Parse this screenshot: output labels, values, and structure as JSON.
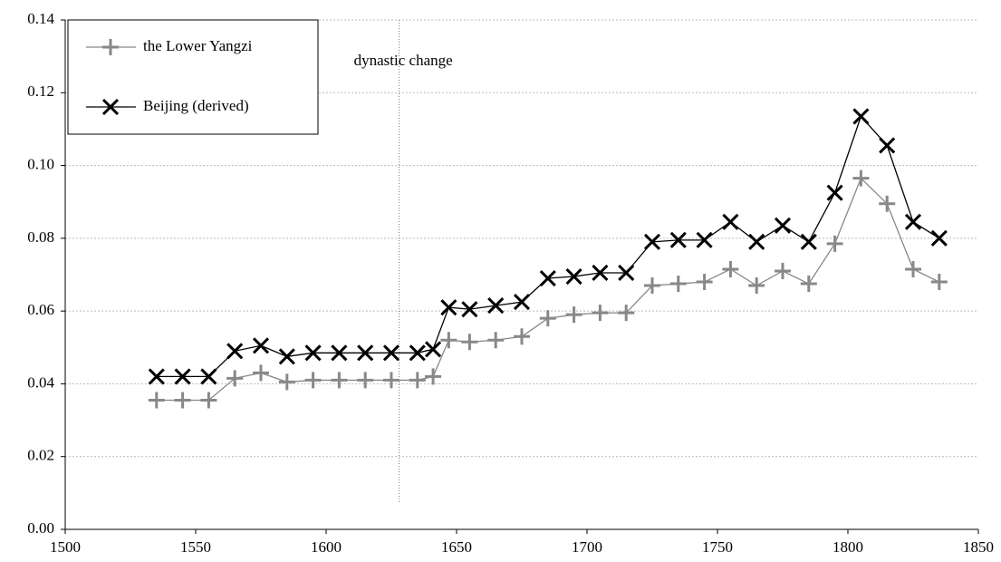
{
  "chart_data": {
    "type": "line",
    "xlim": [
      1500,
      1850
    ],
    "xticks": [
      1500,
      1550,
      1600,
      1650,
      1700,
      1750,
      1800,
      1850
    ],
    "ylim": [
      0,
      0.14
    ],
    "yticks": [
      {
        "value": 0,
        "label": "0.00"
      },
      0.02,
      0.04,
      0.06,
      0.08,
      {
        "value": 0.1,
        "label": "0.10"
      },
      0.12,
      0.14
    ],
    "grid": true,
    "legend": "top-left",
    "annotation": {
      "text": "dynastic change",
      "x": 1628
    },
    "x": [
      1535,
      1545,
      1555,
      1565,
      1575,
      1585,
      1595,
      1605,
      1615,
      1625,
      1635,
      1641,
      1647,
      1655,
      1665,
      1675,
      1685,
      1695,
      1705,
      1715,
      1725,
      1735,
      1745,
      1755,
      1765,
      1775,
      1785,
      1795,
      1805,
      1815,
      1825,
      1835
    ],
    "series": [
      {
        "name": "the Lower Yangzi",
        "color": "#888888",
        "marker": "plus",
        "values": [
          0.0355,
          0.0355,
          0.0355,
          0.0415,
          0.043,
          0.0405,
          0.041,
          0.041,
          0.041,
          0.041,
          0.041,
          0.042,
          0.052,
          0.0515,
          0.052,
          0.053,
          0.058,
          0.059,
          0.0595,
          0.0595,
          0.067,
          0.0675,
          0.068,
          0.0715,
          0.067,
          0.071,
          0.0675,
          0.0785,
          0.0965,
          0.0895,
          0.0715,
          0.068
        ]
      },
      {
        "name": "Beijing (derived)",
        "color": "#000000",
        "marker": "x",
        "values": [
          0.042,
          0.042,
          0.042,
          0.049,
          0.0505,
          0.0475,
          0.0485,
          0.0485,
          0.0485,
          0.0485,
          0.0485,
          0.0495,
          0.061,
          0.0605,
          0.0615,
          0.0625,
          0.069,
          0.0695,
          0.0705,
          0.0705,
          0.079,
          0.0795,
          0.0795,
          0.0845,
          0.079,
          0.0835,
          0.079,
          0.0925,
          0.1135,
          0.1055,
          0.0845,
          0.08
        ]
      }
    ]
  }
}
